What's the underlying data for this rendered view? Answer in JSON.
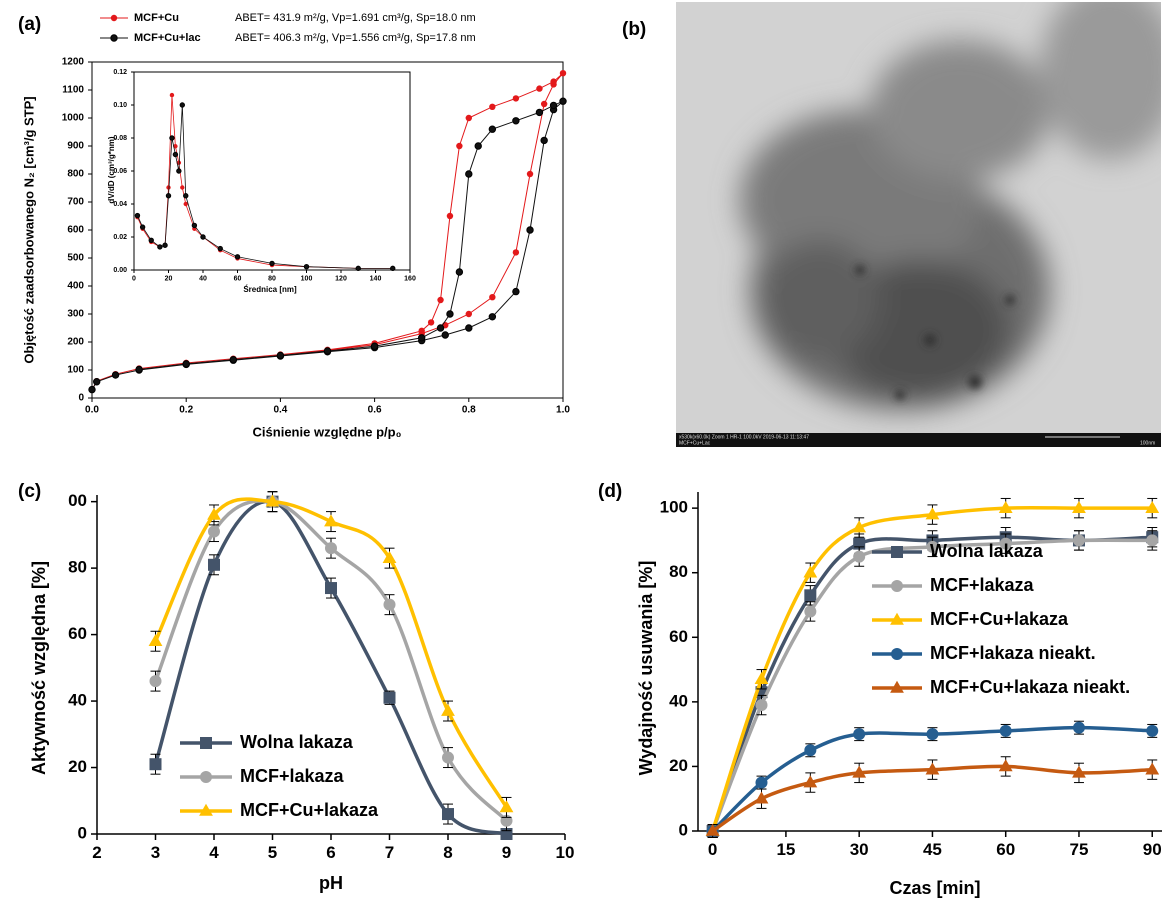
{
  "chart_data": [
    {
      "type": "line",
      "panel_label": "(a)",
      "xlabel": "Ciśnienie względne p/p₀",
      "ylabel": "Objętość zaadsorbowanego N₂ [cm³/g STP]",
      "xlim": [
        0,
        1
      ],
      "ylim": [
        0,
        1200
      ],
      "xticks": [
        {
          "value": 0,
          "label": "0.0"
        },
        {
          "value": 0.2,
          "label": "0.2"
        },
        {
          "value": 0.4,
          "label": "0.4"
        },
        {
          "value": 0.6,
          "label": "0.6"
        },
        {
          "value": 0.8,
          "label": "0.8"
        },
        {
          "value": 1,
          "label": "1.0"
        }
      ],
      "yticks": [
        0,
        100,
        200,
        300,
        400,
        500,
        600,
        700,
        800,
        900,
        1000,
        1100,
        1200
      ],
      "series": [
        {
          "name": "MCF+Cu",
          "annotation": "ABET= 431.9 m²/g, Vp=1.691 cm³/g, Sp=18.0 nm",
          "color": "#e3191b",
          "marker": "circle",
          "x": [
            0,
            0.01,
            0.05,
            0.1,
            0.2,
            0.3,
            0.4,
            0.5,
            0.6,
            0.7,
            0.75,
            0.8,
            0.85,
            0.9,
            0.93,
            0.96,
            0.98,
            1.0,
            0.98,
            0.95,
            0.9,
            0.85,
            0.8,
            0.78,
            0.76,
            0.74,
            0.72,
            0.7,
            0.6,
            0.5,
            0.4,
            0.3,
            0.2,
            0.1
          ],
          "values": [
            30,
            60,
            85,
            105,
            125,
            140,
            155,
            170,
            190,
            230,
            260,
            300,
            360,
            520,
            800,
            1050,
            1120,
            1160,
            1130,
            1105,
            1070,
            1040,
            1000,
            900,
            650,
            350,
            270,
            240,
            195,
            172,
            155,
            140,
            125,
            105
          ]
        },
        {
          "name": "MCF+Cu+lac",
          "annotation": "ABET= 406.3 m²/g, Vp=1.556 cm³/g, Sp=17.8 nm",
          "color": "#111111",
          "marker": "circle",
          "x": [
            0,
            0.01,
            0.05,
            0.1,
            0.2,
            0.3,
            0.4,
            0.5,
            0.6,
            0.7,
            0.75,
            0.8,
            0.85,
            0.9,
            0.93,
            0.96,
            0.98,
            1.0,
            0.98,
            0.95,
            0.9,
            0.85,
            0.82,
            0.8,
            0.78,
            0.76,
            0.74,
            0.7,
            0.6,
            0.5,
            0.4,
            0.3,
            0.2,
            0.1
          ],
          "values": [
            30,
            58,
            82,
            100,
            120,
            135,
            150,
            165,
            180,
            205,
            225,
            250,
            290,
            380,
            600,
            920,
            1030,
            1060,
            1045,
            1020,
            990,
            960,
            900,
            800,
            450,
            300,
            250,
            215,
            185,
            168,
            152,
            137,
            122,
            102
          ]
        }
      ]
    },
    {
      "type": "line",
      "xlabel": "Średnica [nm]",
      "ylabel": "dV/dD (cm³/g*nm)",
      "xlim": [
        0,
        160
      ],
      "ylim": [
        0,
        0.12
      ],
      "xticks": [
        0,
        20,
        40,
        60,
        80,
        100,
        120,
        140,
        160
      ],
      "yticks": [
        {
          "value": 0,
          "label": "0.00"
        },
        {
          "value": 0.02,
          "label": "0.02"
        },
        {
          "value": 0.04,
          "label": "0.04"
        },
        {
          "value": 0.06,
          "label": "0.06"
        },
        {
          "value": 0.08,
          "label": "0.08"
        },
        {
          "value": 0.1,
          "label": "0.10"
        },
        {
          "value": 0.12,
          "label": "0.12"
        }
      ],
      "series": [
        {
          "color": "#e3191b",
          "marker": "circle",
          "x": [
            2,
            5,
            10,
            15,
            18,
            20,
            22,
            24,
            26,
            28,
            30,
            35,
            40,
            50,
            60,
            80,
            100,
            130,
            150
          ],
          "values": [
            0.032,
            0.025,
            0.017,
            0.014,
            0.015,
            0.05,
            0.106,
            0.075,
            0.065,
            0.05,
            0.04,
            0.025,
            0.02,
            0.012,
            0.007,
            0.003,
            0.002,
            0.001,
            0.001
          ]
        },
        {
          "color": "#111111",
          "marker": "circle",
          "x": [
            2,
            5,
            10,
            15,
            18,
            20,
            22,
            24,
            26,
            28,
            30,
            35,
            40,
            50,
            60,
            80,
            100,
            130,
            150
          ],
          "values": [
            0.033,
            0.026,
            0.018,
            0.014,
            0.015,
            0.045,
            0.08,
            0.07,
            0.06,
            0.1,
            0.045,
            0.027,
            0.02,
            0.013,
            0.008,
            0.004,
            0.002,
            0.001,
            0.001
          ]
        }
      ]
    },
    {
      "type": "line",
      "panel_label": "(c)",
      "xlabel": "pH",
      "ylabel": "Aktywność względna [%]",
      "smooth": true,
      "legend": "lower left",
      "xlim": [
        2,
        10
      ],
      "ylim": [
        0,
        102
      ],
      "xticks": [
        2,
        3,
        4,
        5,
        6,
        7,
        8,
        9,
        10
      ],
      "yticks": [
        0,
        20,
        40,
        60,
        80,
        {
          "value": 100,
          "label": "00"
        }
      ],
      "x": [
        3,
        4,
        5,
        6,
        7,
        8,
        9
      ],
      "series": [
        {
          "name": "Wolna lakaza",
          "color": "#44546a",
          "marker": "square",
          "values": [
            21,
            81,
            100,
            74,
            41,
            6,
            0
          ],
          "errors": [
            3,
            3,
            3,
            3,
            2,
            3,
            0
          ]
        },
        {
          "name": "MCF+lakaza",
          "color": "#a5a5a5",
          "marker": "circle",
          "values": [
            46,
            91,
            100,
            86,
            69,
            23,
            4
          ],
          "errors": [
            3,
            3,
            3,
            3,
            3,
            3,
            3
          ]
        },
        {
          "name": "MCF+Cu+lakaza",
          "color": "#ffc000",
          "marker": "triangle",
          "values": [
            58,
            96,
            100,
            94,
            83,
            37,
            8
          ],
          "errors": [
            3,
            3,
            3,
            3,
            3,
            3,
            3
          ]
        }
      ]
    },
    {
      "type": "line",
      "panel_label": "(d)",
      "xlabel": "Czas [min]",
      "ylabel": "Wydajność usuwania [%]",
      "smooth": true,
      "legend": "center right",
      "xlim": [
        -3,
        92
      ],
      "ylim": [
        0,
        105
      ],
      "xticks": [
        0,
        15,
        30,
        45,
        60,
        75,
        90
      ],
      "yticks": [
        0,
        20,
        40,
        60,
        80,
        100
      ],
      "x": [
        0,
        10,
        20,
        30,
        45,
        60,
        75,
        90
      ],
      "series": [
        {
          "name": "Wolna lakaza",
          "color": "#44546a",
          "marker": "square",
          "values": [
            0,
            43,
            73,
            89,
            90,
            91,
            90,
            91
          ],
          "errors": [
            2,
            3,
            3,
            3,
            3,
            3,
            3,
            3
          ]
        },
        {
          "name": "MCF+lakaza",
          "color": "#a5a5a5",
          "marker": "circle",
          "values": [
            0,
            39,
            68,
            85,
            88,
            89,
            90,
            90
          ],
          "errors": [
            2,
            3,
            3,
            3,
            3,
            3,
            3,
            3
          ]
        },
        {
          "name": "MCF+Cu+lakaza",
          "color": "#ffc000",
          "marker": "triangle",
          "values": [
            0,
            47,
            80,
            94,
            98,
            100,
            100,
            100
          ],
          "errors": [
            2,
            3,
            3,
            3,
            3,
            3,
            3,
            3
          ]
        },
        {
          "name": "MCF+lakaza nieakt.",
          "color": "#255e91",
          "marker": "circle",
          "values": [
            0,
            15,
            25,
            30,
            30,
            31,
            32,
            31
          ],
          "errors": [
            2,
            2,
            2,
            2,
            2,
            2,
            2,
            2
          ]
        },
        {
          "name": "MCF+Cu+lakaza nieakt.",
          "color": "#c55a11",
          "marker": "triangle",
          "values": [
            0,
            10,
            15,
            18,
            19,
            20,
            18,
            19
          ],
          "errors": [
            2,
            3,
            3,
            3,
            3,
            3,
            3,
            3
          ]
        }
      ]
    }
  ],
  "image": {
    "panel_label": "(b)",
    "caption": "x530k(x60.0k) Zoom 1 HR-1 100.0kV 2019-06-13 11:13:47",
    "sample": "MCF+Cu+Lac",
    "scale": "100nm"
  }
}
